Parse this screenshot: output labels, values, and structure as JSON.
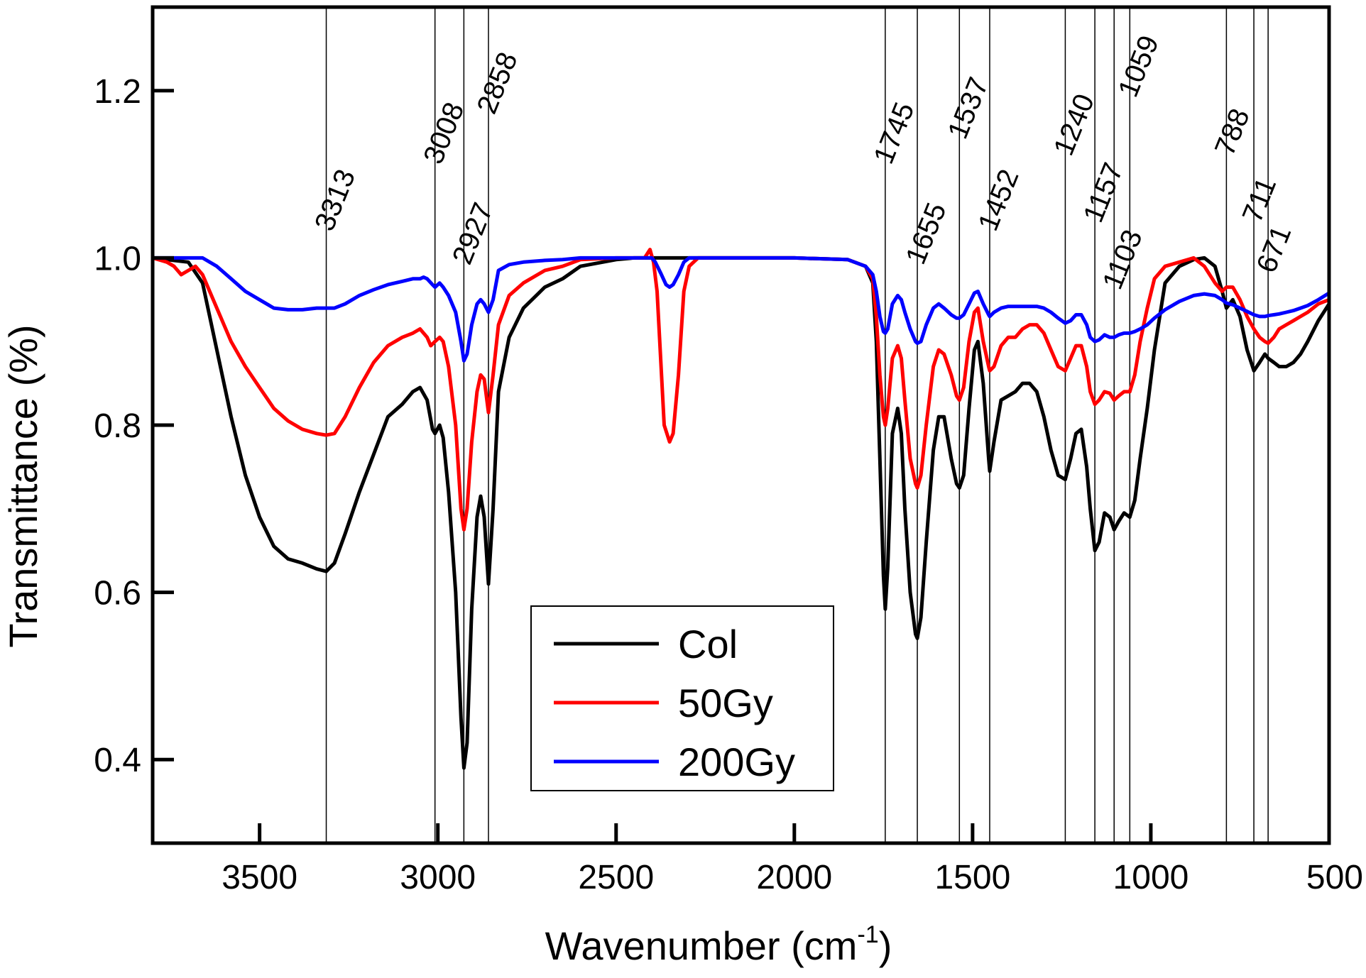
{
  "chart_data": {
    "type": "line",
    "title": "",
    "xlabel": "Wavenumber (cm",
    "xlabel_sup": "-1",
    "xlabel_end": ")",
    "ylabel": "Transmittance (%)",
    "xlim": [
      3800,
      500
    ],
    "ylim": [
      0.3,
      1.3
    ],
    "xticks": [
      3500,
      3000,
      2500,
      2000,
      1500,
      1000,
      500
    ],
    "xtick_labels": [
      "3500",
      "3000",
      "2500",
      "2000",
      "1500",
      "1000",
      "500"
    ],
    "yticks": [
      0.4,
      0.6,
      0.8,
      1.0,
      1.2
    ],
    "ytick_labels": [
      "0.4",
      "0.6",
      "0.8",
      "1.0",
      "1.2"
    ],
    "legend_position": "bottom-center",
    "peak_lines": [
      3313,
      3008,
      2927,
      2858,
      1745,
      1655,
      1537,
      1452,
      1240,
      1157,
      1103,
      1059,
      788,
      711,
      671
    ],
    "peak_labels": [
      {
        "text": "3313",
        "x": 3313,
        "y": 1.03
      },
      {
        "text": "3008",
        "x": 3008,
        "y": 1.11
      },
      {
        "text": "2927",
        "x": 2927,
        "y": 0.99
      },
      {
        "text": "2858",
        "x": 2858,
        "y": 1.17
      },
      {
        "text": "1745",
        "x": 1745,
        "y": 1.11
      },
      {
        "text": "1655",
        "x": 1655,
        "y": 0.99
      },
      {
        "text": "1537",
        "x": 1537,
        "y": 1.14
      },
      {
        "text": "1452",
        "x": 1452,
        "y": 1.03
      },
      {
        "text": "1240",
        "x": 1240,
        "y": 1.12
      },
      {
        "text": "1157",
        "x": 1157,
        "y": 1.04
      },
      {
        "text": "1103",
        "x": 1103,
        "y": 0.96
      },
      {
        "text": "1059",
        "x": 1059,
        "y": 1.19
      },
      {
        "text": "788",
        "x": 788,
        "y": 1.12
      },
      {
        "text": "711",
        "x": 711,
        "y": 1.04
      },
      {
        "text": "671",
        "x": 671,
        "y": 0.98
      }
    ],
    "series": [
      {
        "name": "Col",
        "color": "#000000",
        "x": [
          3800,
          3700,
          3660,
          3620,
          3580,
          3540,
          3500,
          3460,
          3420,
          3380,
          3340,
          3313,
          3290,
          3260,
          3220,
          3180,
          3140,
          3100,
          3070,
          3050,
          3030,
          3015,
          3008,
          2995,
          2985,
          2970,
          2950,
          2935,
          2927,
          2918,
          2905,
          2890,
          2880,
          2870,
          2858,
          2845,
          2830,
          2800,
          2760,
          2700,
          2650,
          2600,
          2500,
          2450,
          2400,
          2380,
          2350,
          2320,
          2300,
          2250,
          2200,
          2000,
          1850,
          1800,
          1780,
          1770,
          1760,
          1750,
          1745,
          1738,
          1725,
          1710,
          1700,
          1690,
          1675,
          1660,
          1655,
          1645,
          1630,
          1610,
          1595,
          1580,
          1560,
          1545,
          1537,
          1525,
          1510,
          1495,
          1485,
          1470,
          1455,
          1452,
          1440,
          1420,
          1400,
          1380,
          1360,
          1340,
          1320,
          1300,
          1280,
          1260,
          1240,
          1225,
          1210,
          1195,
          1180,
          1170,
          1157,
          1145,
          1130,
          1115,
          1103,
          1090,
          1075,
          1059,
          1045,
          1030,
          1010,
          990,
          960,
          920,
          880,
          850,
          820,
          800,
          788,
          770,
          750,
          730,
          711,
          695,
          680,
          671,
          655,
          640,
          620,
          600,
          580,
          560,
          530,
          500
        ],
        "y": [
          1.0,
          0.995,
          0.97,
          0.89,
          0.81,
          0.74,
          0.69,
          0.655,
          0.64,
          0.635,
          0.628,
          0.625,
          0.635,
          0.67,
          0.72,
          0.765,
          0.81,
          0.825,
          0.84,
          0.845,
          0.83,
          0.795,
          0.79,
          0.8,
          0.785,
          0.72,
          0.6,
          0.45,
          0.39,
          0.42,
          0.58,
          0.69,
          0.715,
          0.69,
          0.61,
          0.7,
          0.84,
          0.905,
          0.94,
          0.965,
          0.975,
          0.99,
          0.998,
          1.0,
          1.0,
          1.0,
          1.0,
          1.0,
          1.0,
          1.0,
          1.0,
          1.0,
          0.998,
          0.99,
          0.97,
          0.9,
          0.76,
          0.62,
          0.58,
          0.63,
          0.79,
          0.82,
          0.79,
          0.7,
          0.6,
          0.55,
          0.545,
          0.57,
          0.66,
          0.77,
          0.81,
          0.81,
          0.76,
          0.73,
          0.725,
          0.74,
          0.82,
          0.89,
          0.9,
          0.85,
          0.76,
          0.745,
          0.78,
          0.83,
          0.835,
          0.84,
          0.85,
          0.85,
          0.84,
          0.81,
          0.77,
          0.74,
          0.735,
          0.76,
          0.79,
          0.795,
          0.75,
          0.7,
          0.65,
          0.66,
          0.695,
          0.69,
          0.675,
          0.685,
          0.695,
          0.69,
          0.71,
          0.76,
          0.82,
          0.89,
          0.97,
          0.99,
          0.998,
          1.0,
          0.99,
          0.96,
          0.94,
          0.95,
          0.93,
          0.89,
          0.865,
          0.875,
          0.885,
          0.88,
          0.875,
          0.87,
          0.87,
          0.875,
          0.885,
          0.9,
          0.925,
          0.945
        ]
      },
      {
        "name": "50Gy",
        "color": "#ff0000",
        "x": [
          3800,
          3760,
          3740,
          3720,
          3700,
          3680,
          3660,
          3620,
          3580,
          3540,
          3500,
          3460,
          3420,
          3380,
          3340,
          3313,
          3290,
          3260,
          3220,
          3180,
          3140,
          3100,
          3070,
          3050,
          3030,
          3020,
          3008,
          2995,
          2985,
          2970,
          2950,
          2935,
          2927,
          2918,
          2905,
          2890,
          2880,
          2870,
          2858,
          2845,
          2830,
          2800,
          2760,
          2700,
          2650,
          2600,
          2500,
          2440,
          2420,
          2405,
          2395,
          2385,
          2375,
          2365,
          2350,
          2340,
          2325,
          2310,
          2295,
          2270,
          2200,
          2000,
          1850,
          1800,
          1780,
          1770,
          1760,
          1750,
          1745,
          1738,
          1725,
          1710,
          1700,
          1690,
          1675,
          1660,
          1655,
          1645,
          1630,
          1610,
          1595,
          1580,
          1560,
          1545,
          1537,
          1525,
          1510,
          1495,
          1485,
          1470,
          1455,
          1452,
          1440,
          1420,
          1400,
          1380,
          1360,
          1340,
          1320,
          1300,
          1280,
          1260,
          1240,
          1225,
          1210,
          1195,
          1180,
          1170,
          1157,
          1145,
          1130,
          1115,
          1103,
          1090,
          1075,
          1059,
          1045,
          1030,
          1010,
          990,
          960,
          920,
          880,
          850,
          820,
          800,
          788,
          770,
          750,
          730,
          711,
          695,
          680,
          671,
          655,
          640,
          620,
          600,
          580,
          560,
          530,
          500
        ],
        "y": [
          1.0,
          0.995,
          0.99,
          0.98,
          0.985,
          0.99,
          0.98,
          0.94,
          0.9,
          0.87,
          0.845,
          0.82,
          0.805,
          0.795,
          0.79,
          0.788,
          0.79,
          0.81,
          0.845,
          0.875,
          0.895,
          0.905,
          0.91,
          0.915,
          0.905,
          0.895,
          0.9,
          0.905,
          0.9,
          0.87,
          0.8,
          0.7,
          0.675,
          0.7,
          0.78,
          0.84,
          0.86,
          0.855,
          0.815,
          0.86,
          0.92,
          0.955,
          0.97,
          0.985,
          0.99,
          0.998,
          1.0,
          1.0,
          1.0,
          1.01,
          0.995,
          0.96,
          0.88,
          0.8,
          0.78,
          0.79,
          0.86,
          0.96,
          0.99,
          1.0,
          1.0,
          1.0,
          0.998,
          0.99,
          0.975,
          0.93,
          0.86,
          0.81,
          0.8,
          0.82,
          0.88,
          0.895,
          0.88,
          0.83,
          0.76,
          0.73,
          0.725,
          0.74,
          0.8,
          0.87,
          0.89,
          0.885,
          0.86,
          0.835,
          0.83,
          0.845,
          0.9,
          0.935,
          0.94,
          0.9,
          0.87,
          0.865,
          0.87,
          0.895,
          0.905,
          0.905,
          0.915,
          0.92,
          0.92,
          0.91,
          0.89,
          0.87,
          0.865,
          0.88,
          0.895,
          0.895,
          0.87,
          0.84,
          0.825,
          0.83,
          0.84,
          0.838,
          0.83,
          0.835,
          0.84,
          0.84,
          0.86,
          0.9,
          0.94,
          0.975,
          0.99,
          0.995,
          1.0,
          0.99,
          0.97,
          0.96,
          0.965,
          0.965,
          0.95,
          0.93,
          0.915,
          0.905,
          0.9,
          0.898,
          0.905,
          0.915,
          0.92,
          0.925,
          0.93,
          0.935,
          0.945,
          0.95
        ]
      },
      {
        "name": "200Gy",
        "color": "#0000ff",
        "x": [
          3800,
          3700,
          3660,
          3620,
          3580,
          3540,
          3500,
          3460,
          3420,
          3380,
          3340,
          3313,
          3290,
          3260,
          3220,
          3180,
          3140,
          3100,
          3070,
          3050,
          3040,
          3030,
          3015,
          3008,
          2995,
          2985,
          2970,
          2950,
          2935,
          2927,
          2918,
          2905,
          2890,
          2880,
          2870,
          2858,
          2845,
          2830,
          2800,
          2760,
          2700,
          2650,
          2600,
          2500,
          2440,
          2420,
          2400,
          2390,
          2375,
          2360,
          2350,
          2340,
          2325,
          2310,
          2295,
          2270,
          2200,
          2000,
          1850,
          1800,
          1780,
          1770,
          1760,
          1750,
          1745,
          1738,
          1725,
          1710,
          1700,
          1690,
          1675,
          1660,
          1655,
          1645,
          1630,
          1610,
          1595,
          1580,
          1560,
          1545,
          1537,
          1525,
          1510,
          1495,
          1485,
          1470,
          1455,
          1452,
          1440,
          1420,
          1400,
          1380,
          1360,
          1340,
          1320,
          1300,
          1280,
          1260,
          1240,
          1225,
          1210,
          1195,
          1180,
          1170,
          1157,
          1145,
          1130,
          1115,
          1103,
          1090,
          1075,
          1059,
          1045,
          1030,
          1010,
          990,
          960,
          920,
          880,
          850,
          820,
          800,
          788,
          770,
          750,
          730,
          711,
          695,
          680,
          671,
          655,
          640,
          620,
          600,
          580,
          560,
          530,
          500
        ],
        "y": [
          1.0,
          1.0,
          1.0,
          0.99,
          0.975,
          0.96,
          0.95,
          0.94,
          0.938,
          0.938,
          0.94,
          0.94,
          0.94,
          0.945,
          0.955,
          0.962,
          0.968,
          0.972,
          0.975,
          0.975,
          0.977,
          0.975,
          0.968,
          0.965,
          0.97,
          0.965,
          0.955,
          0.935,
          0.9,
          0.877,
          0.885,
          0.92,
          0.945,
          0.95,
          0.945,
          0.935,
          0.95,
          0.985,
          0.992,
          0.995,
          0.997,
          0.998,
          1.0,
          1.0,
          1.0,
          1.0,
          1.0,
          0.995,
          0.982,
          0.968,
          0.965,
          0.968,
          0.98,
          0.995,
          1.0,
          1.0,
          1.0,
          1.0,
          0.998,
          0.99,
          0.98,
          0.96,
          0.93,
          0.912,
          0.91,
          0.915,
          0.945,
          0.955,
          0.95,
          0.935,
          0.915,
          0.9,
          0.898,
          0.9,
          0.92,
          0.94,
          0.945,
          0.94,
          0.932,
          0.928,
          0.928,
          0.932,
          0.945,
          0.958,
          0.96,
          0.945,
          0.932,
          0.93,
          0.935,
          0.94,
          0.942,
          0.942,
          0.942,
          0.942,
          0.942,
          0.94,
          0.935,
          0.928,
          0.922,
          0.925,
          0.932,
          0.932,
          0.92,
          0.905,
          0.9,
          0.902,
          0.908,
          0.905,
          0.905,
          0.908,
          0.91,
          0.91,
          0.912,
          0.915,
          0.92,
          0.928,
          0.938,
          0.948,
          0.955,
          0.957,
          0.955,
          0.95,
          0.946,
          0.944,
          0.94,
          0.936,
          0.932,
          0.93,
          0.93,
          0.931,
          0.932,
          0.933,
          0.935,
          0.937,
          0.94,
          0.943,
          0.95,
          0.958
        ]
      }
    ]
  }
}
